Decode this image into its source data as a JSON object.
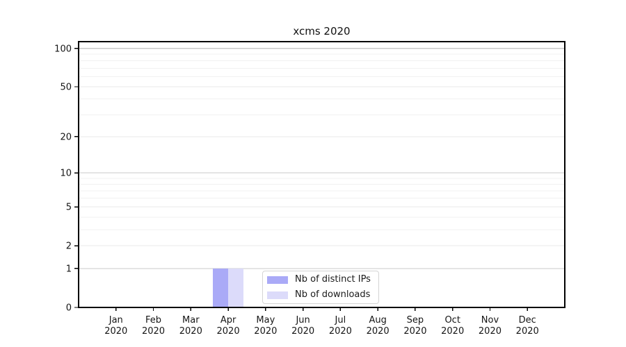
{
  "chart_data": {
    "type": "bar",
    "title": "xcms 2020",
    "x_categories": [
      "Jan",
      "Feb",
      "Mar",
      "Apr",
      "May",
      "Jun",
      "Jul",
      "Aug",
      "Sep",
      "Oct",
      "Nov",
      "Dec"
    ],
    "x_year_label": "2020",
    "series": [
      {
        "name": "Nb of distinct IPs",
        "color": "#aaaaf7",
        "values": [
          0,
          0,
          0,
          1,
          0,
          0,
          0,
          0,
          0,
          0,
          0,
          0
        ]
      },
      {
        "name": "Nb of downloads",
        "color": "#dcdbfa",
        "values": [
          0,
          0,
          0,
          1,
          0,
          0,
          0,
          0,
          0,
          0,
          0,
          0
        ]
      }
    ],
    "y_axis": {
      "scale": "symlog",
      "ticks": [
        0,
        1,
        2,
        5,
        10,
        20,
        50,
        100
      ],
      "minor_ticks": [
        3,
        4,
        6,
        7,
        8,
        9,
        30,
        40,
        60,
        70,
        80,
        90
      ],
      "decade_ticks": [
        1,
        10,
        100
      ],
      "max": 113,
      "grid": true
    },
    "legend": {
      "position": "lower center-right inside plot"
    },
    "style_colors": {
      "grid_major": "#e9e9e9",
      "grid_minor": "#f1f1f1",
      "grid_decade": "#c8c8c8",
      "spine": "#000000",
      "tick_text": "#151515"
    }
  }
}
